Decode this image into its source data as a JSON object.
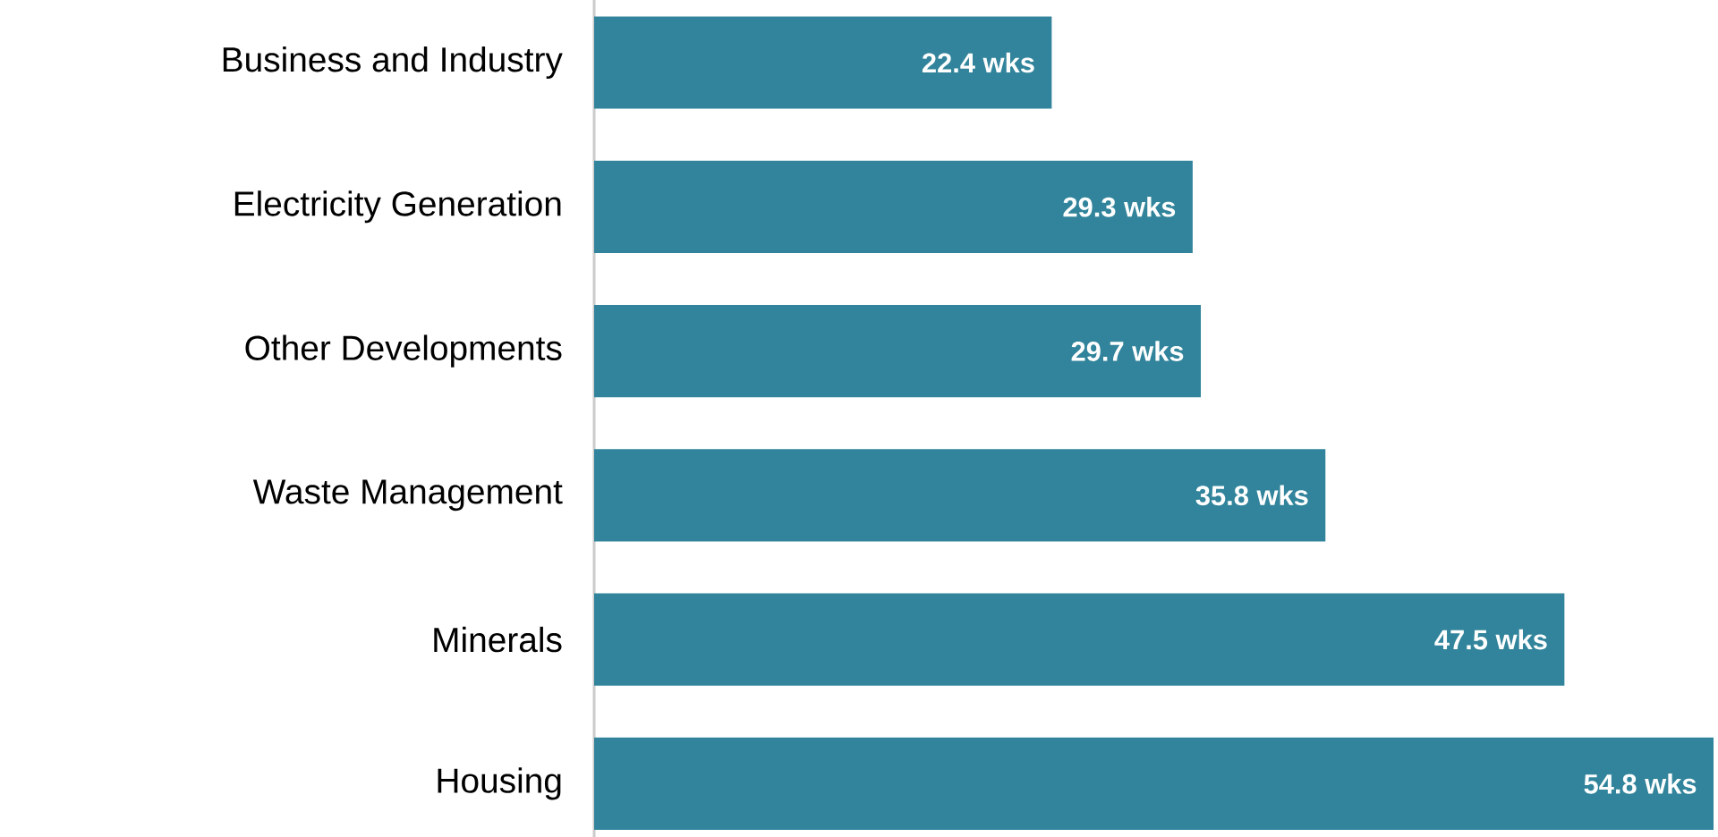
{
  "chart_data": {
    "type": "bar",
    "orientation": "horizontal",
    "color": "#31849b",
    "categories": [
      "Business and Industry",
      "Electricity Generation",
      "Other Developments",
      "Waste Management",
      "Minerals",
      "Housing"
    ],
    "values": [
      22.4,
      29.3,
      29.7,
      35.8,
      47.5,
      54.8
    ],
    "value_labels": [
      "22.4 wks",
      "29.3 wks",
      "29.7 wks",
      "35.8 wks",
      "47.5 wks",
      "54.8 wks"
    ]
  }
}
